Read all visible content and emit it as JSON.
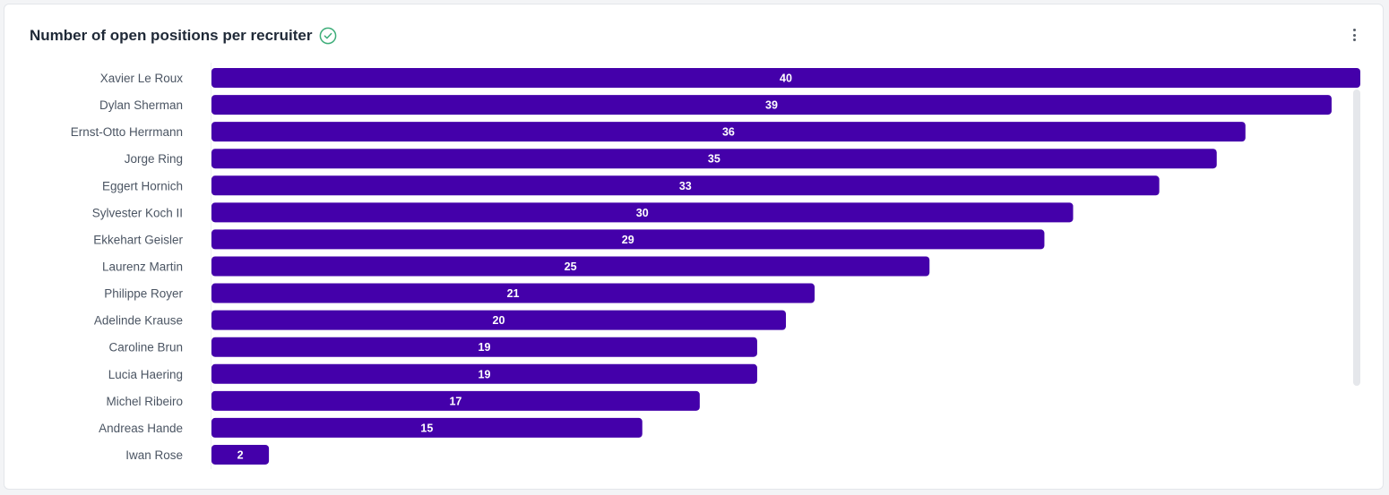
{
  "card": {
    "title": "Number of open positions per recruiter",
    "title_icon": "check-circle-icon",
    "menu_icon": "more-vertical-icon"
  },
  "colors": {
    "bar": "#4400aa",
    "check": "#3fae7a",
    "scrollbar": "#e5e7eb"
  },
  "chart_data": {
    "type": "bar",
    "orientation": "horizontal",
    "title": "Number of open positions per recruiter",
    "xlabel": "",
    "ylabel": "",
    "xlim": [
      0,
      40
    ],
    "grid": false,
    "categories": [
      "Xavier Le Roux",
      "Dylan Sherman",
      "Ernst-Otto Herrmann",
      "Jorge Ring",
      "Eggert Hornich",
      "Sylvester Koch II",
      "Ekkehart Geisler",
      "Laurenz Martin",
      "Philippe Royer",
      "Adelinde Krause",
      "Caroline Brun",
      "Lucia Haering",
      "Michel Ribeiro",
      "Andreas Hande",
      "Iwan Rose"
    ],
    "values": [
      40,
      39,
      36,
      35,
      33,
      30,
      29,
      25,
      21,
      20,
      19,
      19,
      17,
      15,
      2
    ]
  }
}
